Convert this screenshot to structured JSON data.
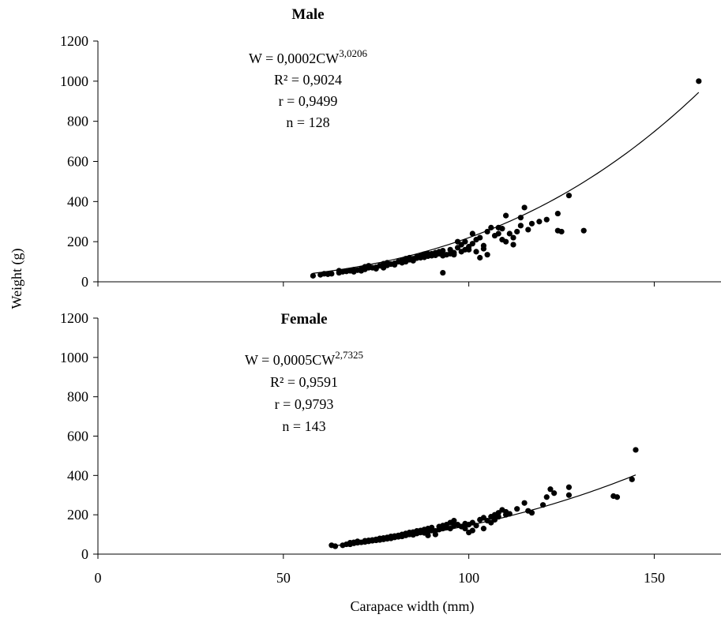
{
  "chart_data": {
    "type": "scatter",
    "ylabel": "Weight (g)",
    "xlabel": "Carapace width  (mm)",
    "x_ticks": [
      "0",
      "50",
      "100",
      "150"
    ],
    "y_ticks": [
      "0",
      "200",
      "400",
      "600",
      "800",
      "1000",
      "1200"
    ],
    "xlim": [
      0,
      168
    ],
    "ylim": [
      0,
      1200
    ],
    "grid": false,
    "panels": [
      {
        "title": "Male",
        "fit": {
          "a": 0.0002,
          "b": 3.0206,
          "x_range": [
            58,
            162
          ]
        },
        "equation": {
          "prefix": "W = 0,0002CW",
          "exponent": "3,0206"
        },
        "stats": [
          "R² = 0,9024",
          "r = 0,9499",
          "n = 128"
        ],
        "points": [
          [
            58,
            30
          ],
          [
            60,
            35
          ],
          [
            61,
            40
          ],
          [
            62,
            38
          ],
          [
            63,
            40
          ],
          [
            65,
            45
          ],
          [
            65,
            55
          ],
          [
            66,
            50
          ],
          [
            67,
            52
          ],
          [
            68,
            55
          ],
          [
            69,
            60
          ],
          [
            69,
            50
          ],
          [
            70,
            58
          ],
          [
            71,
            65
          ],
          [
            71,
            55
          ],
          [
            72,
            62
          ],
          [
            72,
            75
          ],
          [
            73,
            80
          ],
          [
            73,
            70
          ],
          [
            74,
            70
          ],
          [
            75,
            65
          ],
          [
            75,
            72
          ],
          [
            76,
            80
          ],
          [
            77,
            70
          ],
          [
            77,
            90
          ],
          [
            78,
            82
          ],
          [
            78,
            95
          ],
          [
            79,
            88
          ],
          [
            80,
            85
          ],
          [
            80,
            92
          ],
          [
            81,
            100
          ],
          [
            82,
            95
          ],
          [
            82,
            108
          ],
          [
            83,
            100
          ],
          [
            83,
            115
          ],
          [
            84,
            110
          ],
          [
            84,
            120
          ],
          [
            85,
            105
          ],
          [
            85,
            115
          ],
          [
            86,
            125
          ],
          [
            86,
            118
          ],
          [
            87,
            120
          ],
          [
            87,
            130
          ],
          [
            88,
            122
          ],
          [
            88,
            138
          ],
          [
            89,
            128
          ],
          [
            89,
            140
          ],
          [
            90,
            140
          ],
          [
            90,
            130
          ],
          [
            91,
            145
          ],
          [
            91,
            132
          ],
          [
            92,
            140
          ],
          [
            92,
            150
          ],
          [
            93,
            45
          ],
          [
            93,
            130
          ],
          [
            93,
            155
          ],
          [
            94,
            135
          ],
          [
            95,
            160
          ],
          [
            95,
            140
          ],
          [
            96,
            145
          ],
          [
            96,
            135
          ],
          [
            97,
            200
          ],
          [
            97,
            170
          ],
          [
            98,
            150
          ],
          [
            98,
            185
          ],
          [
            99,
            200
          ],
          [
            99,
            160
          ],
          [
            100,
            175
          ],
          [
            100,
            160
          ],
          [
            101,
            190
          ],
          [
            101,
            240
          ],
          [
            102,
            210
          ],
          [
            102,
            150
          ],
          [
            103,
            220
          ],
          [
            103,
            120
          ],
          [
            104,
            180
          ],
          [
            104,
            165
          ],
          [
            105,
            250
          ],
          [
            105,
            135
          ],
          [
            106,
            270
          ],
          [
            107,
            230
          ],
          [
            108,
            270
          ],
          [
            108,
            240
          ],
          [
            109,
            265
          ],
          [
            109,
            210
          ],
          [
            110,
            330
          ],
          [
            110,
            200
          ],
          [
            111,
            240
          ],
          [
            112,
            220
          ],
          [
            112,
            185
          ],
          [
            113,
            250
          ],
          [
            114,
            320
          ],
          [
            114,
            280
          ],
          [
            115,
            370
          ],
          [
            116,
            260
          ],
          [
            117,
            290
          ],
          [
            119,
            300
          ],
          [
            121,
            310
          ],
          [
            124,
            340
          ],
          [
            124,
            255
          ],
          [
            125,
            250
          ],
          [
            127,
            430
          ],
          [
            131,
            255
          ],
          [
            162,
            1000
          ]
        ]
      },
      {
        "title": "Female",
        "fit": {
          "a": 0.0005,
          "b": 2.7325,
          "x_range": [
            63,
            145
          ]
        },
        "equation": {
          "prefix": "W = 0,0005CW",
          "exponent": "2,7325"
        },
        "stats": [
          "R² = 0,9591",
          "r = 0,9793",
          "n = 143"
        ],
        "points": [
          [
            63,
            45
          ],
          [
            64,
            40
          ],
          [
            66,
            45
          ],
          [
            67,
            50
          ],
          [
            68,
            50
          ],
          [
            68,
            58
          ],
          [
            69,
            55
          ],
          [
            69,
            60
          ],
          [
            70,
            58
          ],
          [
            70,
            65
          ],
          [
            71,
            60
          ],
          [
            72,
            62
          ],
          [
            72,
            68
          ],
          [
            73,
            65
          ],
          [
            73,
            70
          ],
          [
            74,
            68
          ],
          [
            74,
            72
          ],
          [
            75,
            70
          ],
          [
            75,
            75
          ],
          [
            76,
            72
          ],
          [
            76,
            80
          ],
          [
            77,
            75
          ],
          [
            77,
            82
          ],
          [
            78,
            78
          ],
          [
            78,
            85
          ],
          [
            79,
            80
          ],
          [
            79,
            90
          ],
          [
            80,
            85
          ],
          [
            80,
            92
          ],
          [
            81,
            95
          ],
          [
            81,
            88
          ],
          [
            82,
            90
          ],
          [
            82,
            100
          ],
          [
            83,
            95
          ],
          [
            83,
            105
          ],
          [
            84,
            100
          ],
          [
            84,
            110
          ],
          [
            85,
            98
          ],
          [
            85,
            112
          ],
          [
            86,
            105
          ],
          [
            86,
            118
          ],
          [
            87,
            110
          ],
          [
            87,
            120
          ],
          [
            88,
            108
          ],
          [
            88,
            125
          ],
          [
            89,
            115
          ],
          [
            89,
            130
          ],
          [
            89,
            95
          ],
          [
            90,
            120
          ],
          [
            90,
            135
          ],
          [
            91,
            118
          ],
          [
            91,
            100
          ],
          [
            92,
            125
          ],
          [
            92,
            140
          ],
          [
            93,
            130
          ],
          [
            93,
            145
          ],
          [
            94,
            135
          ],
          [
            94,
            150
          ],
          [
            95,
            130
          ],
          [
            95,
            160
          ],
          [
            96,
            145
          ],
          [
            96,
            170
          ],
          [
            97,
            150
          ],
          [
            98,
            140
          ],
          [
            99,
            155
          ],
          [
            99,
            130
          ],
          [
            100,
            150
          ],
          [
            100,
            110
          ],
          [
            101,
            160
          ],
          [
            101,
            120
          ],
          [
            102,
            145
          ],
          [
            103,
            175
          ],
          [
            104,
            185
          ],
          [
            104,
            130
          ],
          [
            105,
            170
          ],
          [
            106,
            190
          ],
          [
            106,
            160
          ],
          [
            107,
            200
          ],
          [
            107,
            175
          ],
          [
            108,
            210
          ],
          [
            108,
            190
          ],
          [
            109,
            225
          ],
          [
            110,
            215
          ],
          [
            110,
            200
          ],
          [
            111,
            205
          ],
          [
            113,
            230
          ],
          [
            115,
            260
          ],
          [
            116,
            220
          ],
          [
            117,
            210
          ],
          [
            120,
            250
          ],
          [
            121,
            290
          ],
          [
            122,
            330
          ],
          [
            123,
            310
          ],
          [
            127,
            300
          ],
          [
            127,
            340
          ],
          [
            139,
            295
          ],
          [
            140,
            290
          ],
          [
            144,
            380
          ],
          [
            145,
            530
          ]
        ]
      }
    ]
  }
}
